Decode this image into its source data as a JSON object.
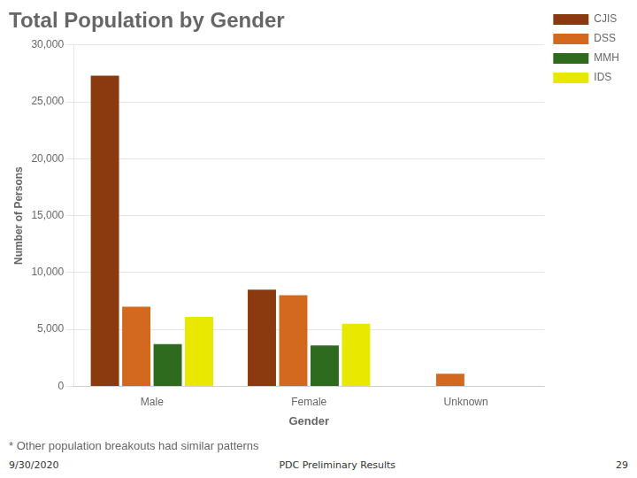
{
  "chart_data": {
    "type": "bar",
    "title": "Total Population by Gender",
    "subtitle": "* Other population breakouts had similar patterns",
    "annotations": [
      "9/30/2020",
      "PDC Preliminary Results",
      "29"
    ],
    "xlabel": "Gender",
    "ylabel": "Number of Persons",
    "categories": [
      "Male",
      "Female",
      "Unknown"
    ],
    "series": [
      {
        "name": "CJIS",
        "color": "#8B3A10",
        "values": [
          27300,
          8500,
          0
        ]
      },
      {
        "name": "DSS",
        "color": "#D2691E",
        "values": [
          7000,
          8000,
          1100
        ]
      },
      {
        "name": "MMH",
        "color": "#2E6B1E",
        "values": [
          3700,
          3600,
          0
        ]
      },
      {
        "name": "IDS",
        "color": "#E8E800",
        "values": [
          6100,
          5500,
          0
        ]
      }
    ],
    "ylim": [
      0,
      30000
    ],
    "yticks": [
      0,
      {
        "value": 5000,
        "label": "5,000"
      },
      {
        "value": 10000,
        "label": "10,000"
      },
      {
        "value": 15000,
        "label": "15,000"
      },
      {
        "value": 20000,
        "label": "20,000"
      },
      {
        "value": 25000,
        "label": "25,000"
      },
      {
        "value": 30000,
        "label": "30,000"
      }
    ],
    "grid": true,
    "legend": "right"
  }
}
